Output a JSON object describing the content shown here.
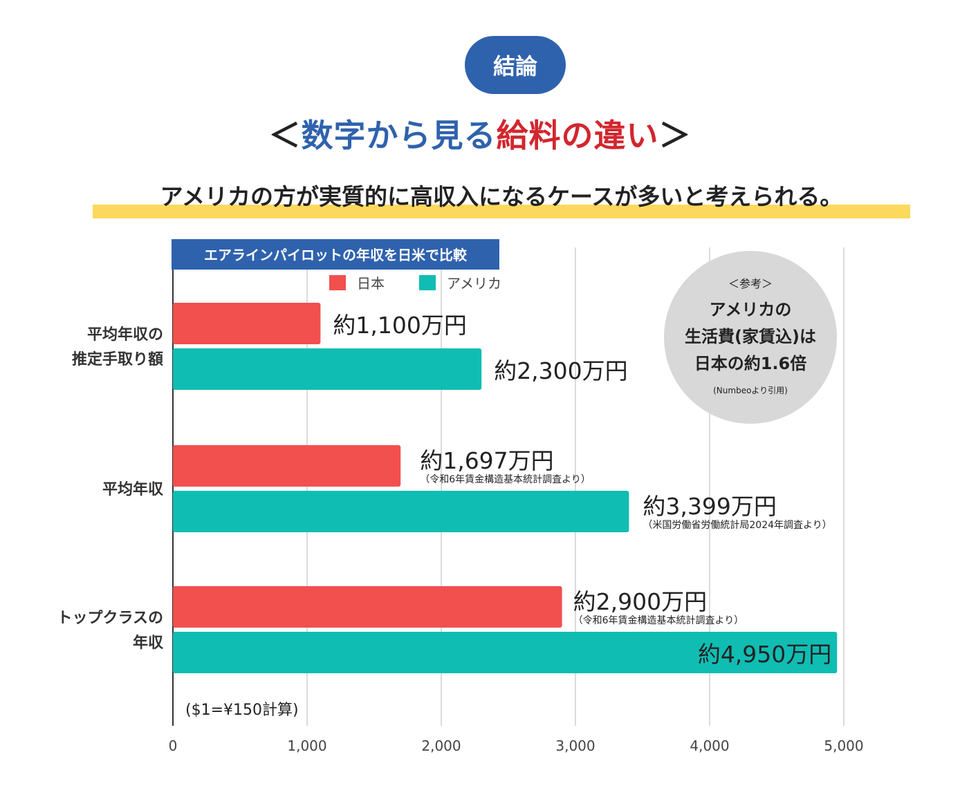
{
  "badge": "結論",
  "title": {
    "open": "＜",
    "part_blue": "数字から見る",
    "part_red": "給料の違い",
    "close": "＞"
  },
  "subtitle": "アメリカの方が実質的に高収入になるケースが多いと考えられる。",
  "note": {
    "ref": "＜参考＞",
    "line1": "アメリカの",
    "line2": "生活費(家賃込)は",
    "line3": "日本の約1.6倍",
    "source": "(Numbeoより引用)"
  },
  "chart_data": {
    "type": "bar",
    "orientation": "horizontal",
    "title": "エアラインパイロットの年収を日米で比較",
    "categories": [
      "平均年収の\n推定手取り額",
      "平均年収",
      "トップクラスの\n年収"
    ],
    "series": [
      {
        "name": "日本",
        "color": "#f24f4f",
        "values": [
          1100,
          1697,
          2900
        ],
        "labels": [
          "約1,100万円",
          "約1,697万円",
          "約2,900万円"
        ],
        "notes": [
          "",
          "（令和6年賃金構造基本統計調査より）",
          "（令和6年賃金構造基本統計調査より）"
        ]
      },
      {
        "name": "アメリカ",
        "color": "#10bdb3",
        "values": [
          2300,
          3399,
          4950
        ],
        "labels": [
          "約2,300万円",
          "約3,399万円",
          "約4,950万円"
        ],
        "notes": [
          "",
          "（米国労働省労働統計局2024年調査より）",
          ""
        ]
      }
    ],
    "xlim": [
      0,
      5000
    ],
    "xticks": [
      0,
      1000,
      2000,
      3000,
      4000,
      5000
    ],
    "xtick_labels": [
      "0",
      "1,000",
      "2,000",
      "3,000",
      "4,000",
      "5,000"
    ],
    "grid": true,
    "legend": "top",
    "footnote": "($1=¥150計算)"
  }
}
